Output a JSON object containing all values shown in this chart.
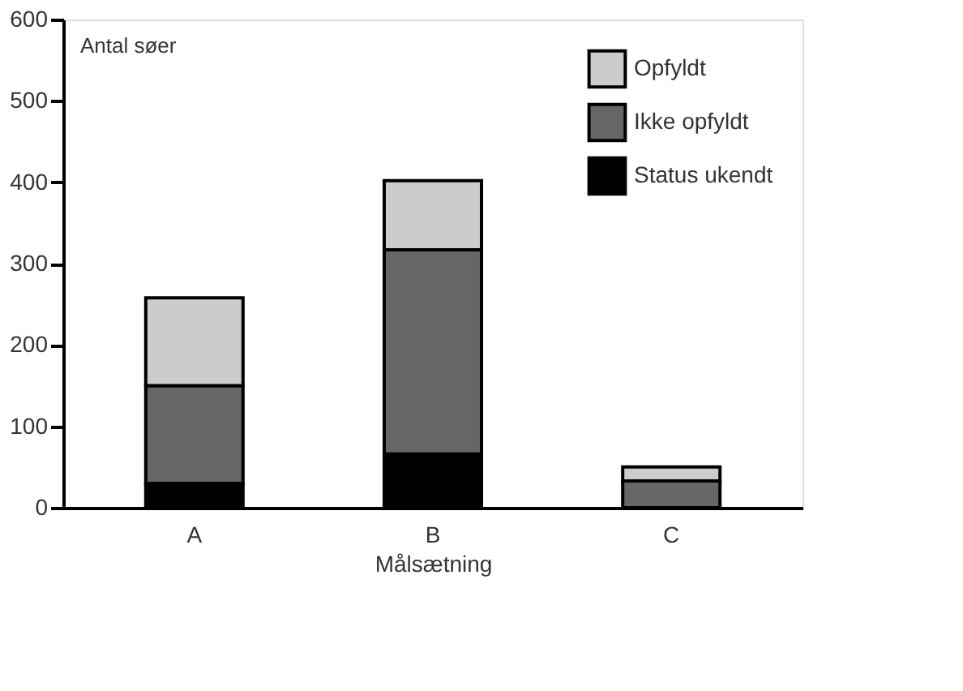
{
  "chart_data": {
    "type": "bar",
    "stacked": true,
    "xlabel": "Målsætning",
    "ylabel": "Antal søer",
    "categories": [
      "A",
      "B",
      "C"
    ],
    "series": [
      {
        "name": "Status ukendt",
        "color": "#000000",
        "values": [
          30,
          66,
          0
        ]
      },
      {
        "name": "Ikke opfyldt",
        "color": "#666666",
        "values": [
          120,
          251,
          33
        ]
      },
      {
        "name": "Opfyldt",
        "color": "#cccccc",
        "values": [
          108,
          85,
          17
        ]
      }
    ],
    "ylim": [
      0,
      600
    ],
    "yticks": [
      0,
      100,
      200,
      300,
      400,
      500,
      600
    ],
    "grid": false,
    "legend": "top right"
  }
}
